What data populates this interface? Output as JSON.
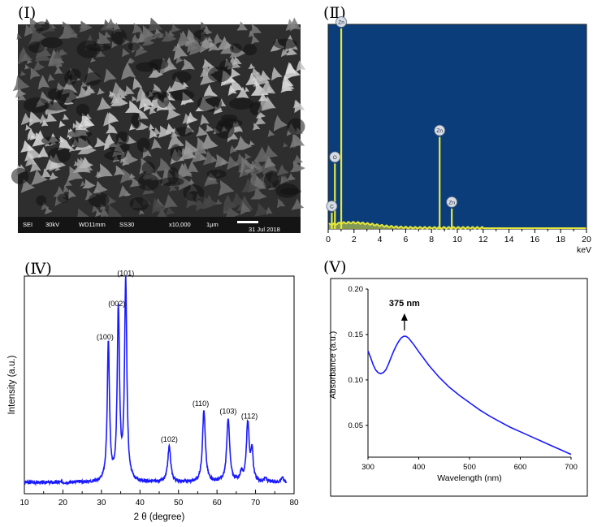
{
  "panels": {
    "p1": "(Ⅰ)",
    "p2": "(Ⅱ)",
    "p4": "(Ⅳ)",
    "p5": "(Ⅴ)"
  },
  "sem": {
    "info": [
      "SEI",
      "30kV",
      "WD11mm",
      "SS30",
      "x10,000",
      "1μm"
    ],
    "date": "31 Jul 2018"
  },
  "chart_data": [
    {
      "type": "bar",
      "panel": "(Ⅱ)",
      "title": "",
      "xlabel": "keV",
      "ylabel": "",
      "xlim": [
        0,
        20
      ],
      "x_ticks": [
        "0",
        "1",
        "2",
        "3",
        "4",
        "5",
        "6",
        "7",
        "8",
        "9",
        "10",
        "11",
        "12",
        "13",
        "14",
        "15",
        "16",
        "17",
        "18",
        "19",
        "20"
      ],
      "x_tick_labels": [
        "0",
        "2",
        "4",
        "6",
        "8",
        "10",
        "12",
        "14",
        "16",
        "18",
        "20"
      ],
      "background": "#0a3d7a",
      "line_color": "#e8e83a",
      "peaks": [
        {
          "label": "O",
          "x": 0.52,
          "y": 0.32
        },
        {
          "label": "Zn",
          "x": 1.01,
          "y": 0.98
        },
        {
          "label": "C",
          "x": 0.28,
          "y": 0.08
        },
        {
          "label": "Zn",
          "x": 8.63,
          "y": 0.45
        },
        {
          "label": "Zn",
          "x": 9.57,
          "y": 0.1
        }
      ],
      "grid": false
    },
    {
      "type": "line",
      "panel": "(Ⅳ)",
      "title": "",
      "xlabel": "2 θ (degree)",
      "ylabel": "Intensity (a.u.)",
      "xlim": [
        10,
        80
      ],
      "x_ticks": [
        "10",
        "20",
        "30",
        "40",
        "50",
        "60",
        "70",
        "80"
      ],
      "line_color": "#1a1aff",
      "peaks": [
        {
          "label": "(100)",
          "x": 31.8,
          "y": 0.54
        },
        {
          "label": "(002)",
          "x": 34.4,
          "y": 0.67
        },
        {
          "label": "(101)",
          "x": 36.3,
          "y": 0.79
        },
        {
          "label": "(102)",
          "x": 47.6,
          "y": 0.14
        },
        {
          "label": "(110)",
          "x": 56.6,
          "y": 0.28
        },
        {
          "label": "(103)",
          "x": 62.9,
          "y": 0.25
        },
        {
          "label": "(112)",
          "x": 68.0,
          "y": 0.23
        }
      ],
      "grid": false
    },
    {
      "type": "line",
      "panel": "(Ⅴ)",
      "title": "",
      "xlabel": "Wavelength (nm)",
      "ylabel": "Absorbance (a.u.)",
      "xlim": [
        300,
        700
      ],
      "ylim": [
        0.015,
        0.2
      ],
      "x_ticks": [
        "300",
        "400",
        "500",
        "600",
        "700"
      ],
      "y_ticks": [
        "0.05",
        "0.10",
        "0.15",
        "0.20"
      ],
      "line_color": "#1a1aff",
      "annotation": "375 nm",
      "annotation_x": 375,
      "x": [
        300,
        305,
        310,
        315,
        320,
        325,
        330,
        335,
        340,
        345,
        350,
        355,
        360,
        365,
        370,
        375,
        380,
        390,
        400,
        420,
        440,
        460,
        480,
        500,
        520,
        540,
        560,
        580,
        600,
        620,
        640,
        660,
        680,
        700
      ],
      "y": [
        0.132,
        0.125,
        0.117,
        0.111,
        0.108,
        0.107,
        0.108,
        0.111,
        0.117,
        0.124,
        0.131,
        0.137,
        0.142,
        0.146,
        0.148,
        0.148,
        0.146,
        0.139,
        0.131,
        0.116,
        0.103,
        0.092,
        0.083,
        0.075,
        0.067,
        0.06,
        0.054,
        0.048,
        0.043,
        0.038,
        0.033,
        0.028,
        0.023,
        0.018
      ],
      "grid": false
    }
  ]
}
